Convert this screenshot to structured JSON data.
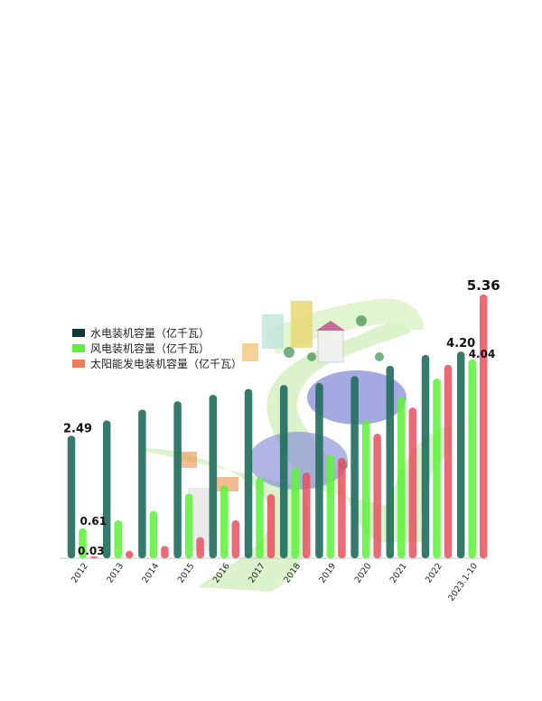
{
  "chart_data": {
    "type": "bar",
    "categories": [
      "2012",
      "2013",
      "2014",
      "2015",
      "2016",
      "2017",
      "2018",
      "2019",
      "2020",
      "2021",
      "2022",
      "2023.1-10"
    ],
    "series": [
      {
        "name": "水电装机容量（亿千瓦）",
        "color": "#24705f",
        "values": [
          2.49,
          2.8,
          3.02,
          3.19,
          3.32,
          3.44,
          3.52,
          3.56,
          3.7,
          3.91,
          4.13,
          4.2
        ]
      },
      {
        "name": "风电装机容量（亿千瓦）",
        "color": "#5ef23c",
        "values": [
          0.61,
          0.77,
          0.96,
          1.31,
          1.48,
          1.64,
          1.84,
          2.1,
          2.81,
          3.28,
          3.65,
          4.04
        ]
      },
      {
        "name": "太阳能发电装机容量（亿千瓦）",
        "color": "#e8505d",
        "values": [
          0.03,
          0.15,
          0.25,
          0.43,
          0.77,
          1.3,
          1.74,
          2.04,
          2.53,
          3.06,
          3.93,
          5.36
        ]
      }
    ],
    "data_labels": [
      {
        "series": 0,
        "index": 0,
        "text": "2.49"
      },
      {
        "series": 1,
        "index": 0,
        "text": "0.61"
      },
      {
        "series": 2,
        "index": 0,
        "text": "0.03"
      },
      {
        "series": 0,
        "index": 11,
        "text": "4.20"
      },
      {
        "series": 1,
        "index": 11,
        "text": "4.04"
      },
      {
        "series": 2,
        "index": 11,
        "text": "5.36"
      }
    ],
    "ylim": [
      0,
      5.36
    ],
    "legend": "top-left",
    "grid": false
  }
}
